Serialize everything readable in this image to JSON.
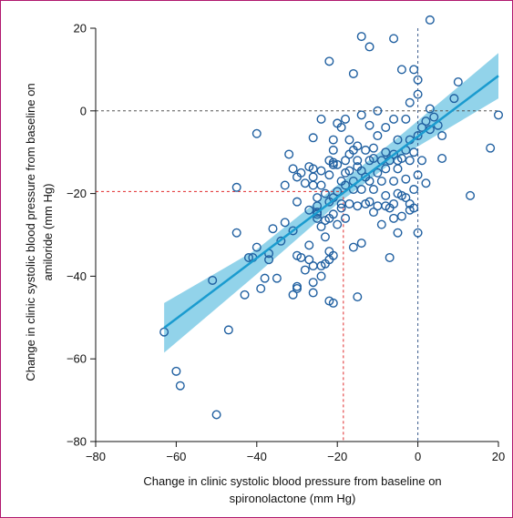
{
  "chart_data": {
    "type": "scatter",
    "xlabel_lines": [
      "Change in clinic systolic blood pressure from baseline on",
      "spironolactone (mm Hg)"
    ],
    "ylabel_lines": [
      "Change in clinic systolic blood pressure from baseline on",
      "amiloride (mm Hg)"
    ],
    "xlim": [
      -80,
      20
    ],
    "ylim": [
      -80,
      20
    ],
    "xticks": [
      -80,
      -60,
      -40,
      -20,
      0,
      20
    ],
    "yticks": [
      -80,
      -60,
      -40,
      -20,
      0,
      20
    ],
    "x_tick_labels": [
      "−80",
      "−60",
      "−40",
      "−20",
      "0",
      "20"
    ],
    "y_tick_labels": [
      "−80",
      "−60",
      "−40",
      "−20",
      "0",
      "20"
    ],
    "grid": false,
    "reference_lines": {
      "zero_horizontal": 0,
      "zero_vertical": 0,
      "highlight_x": -18.5,
      "highlight_y": -19.5
    },
    "regression": {
      "x_range": [
        -63,
        20
      ],
      "y_at_start": -52.5,
      "y_at_end": 8.5,
      "ci_band": [
        {
          "x": -63,
          "lower": -58.5,
          "upper": -46.5
        },
        {
          "x": -40,
          "lower": -39.5,
          "upper": -33.5
        },
        {
          "x": -20,
          "lower": -22.5,
          "upper": -18.0
        },
        {
          "x": -5,
          "lower": -11.5,
          "upper": -6.5
        },
        {
          "x": 20,
          "lower": 3.0,
          "upper": 14.0
        }
      ]
    },
    "points": [
      [
        -63,
        -53.5
      ],
      [
        -60,
        -63
      ],
      [
        -59,
        -66.5
      ],
      [
        -51,
        -41
      ],
      [
        -50,
        -73.5
      ],
      [
        -47,
        -53
      ],
      [
        -45,
        -18.5
      ],
      [
        -45,
        -29.5
      ],
      [
        -43,
        -44.5
      ],
      [
        -42,
        -35.5
      ],
      [
        -41,
        -35.5
      ],
      [
        -40,
        -33
      ],
      [
        -40,
        -5.5
      ],
      [
        -39,
        -43
      ],
      [
        -38,
        -40.5
      ],
      [
        -37,
        -36
      ],
      [
        -37,
        -34.5
      ],
      [
        -36,
        -28.5
      ],
      [
        -35,
        -40.5
      ],
      [
        -34,
        -31.5
      ],
      [
        -33,
        -27
      ],
      [
        -33,
        -18
      ],
      [
        -32,
        -10.5
      ],
      [
        -31,
        -29
      ],
      [
        -31,
        -44.5
      ],
      [
        -31,
        -14
      ],
      [
        -30,
        -42.5
      ],
      [
        -30,
        -43
      ],
      [
        -30,
        -35
      ],
      [
        -30,
        -22
      ],
      [
        -30,
        -16
      ],
      [
        -29,
        -35.5
      ],
      [
        -29,
        -15
      ],
      [
        -28,
        -17.5
      ],
      [
        -28,
        -38.5
      ],
      [
        -27,
        -13.5
      ],
      [
        -27,
        -24
      ],
      [
        -27,
        -32.5
      ],
      [
        -27,
        -36
      ],
      [
        -26,
        -6.5
      ],
      [
        -26,
        -14
      ],
      [
        -26,
        -16
      ],
      [
        -26,
        -18
      ],
      [
        -26,
        -37.5
      ],
      [
        -26,
        -41.5
      ],
      [
        -26,
        -44
      ],
      [
        -25,
        -21
      ],
      [
        -25,
        -24.5
      ],
      [
        -25,
        -25
      ],
      [
        -25,
        -26
      ],
      [
        -25,
        -23
      ],
      [
        -24,
        -18
      ],
      [
        -24,
        -2
      ],
      [
        -24,
        -14.5
      ],
      [
        -24,
        -28
      ],
      [
        -24,
        -37.5
      ],
      [
        -24,
        -40
      ],
      [
        -23,
        -20
      ],
      [
        -23,
        -26.5
      ],
      [
        -23,
        -30.5
      ],
      [
        -23,
        -37
      ],
      [
        -22,
        -12
      ],
      [
        -22,
        -15.5
      ],
      [
        -22,
        -22
      ],
      [
        -22,
        -26
      ],
      [
        -22,
        -34
      ],
      [
        -22,
        -36
      ],
      [
        -22,
        12
      ],
      [
        -22,
        -46
      ],
      [
        -21,
        -7
      ],
      [
        -21,
        -9.5
      ],
      [
        -21,
        -12.5
      ],
      [
        -21,
        -13
      ],
      [
        -21,
        -21
      ],
      [
        -21,
        -25
      ],
      [
        -21,
        -35
      ],
      [
        -21,
        -46.5
      ],
      [
        -20,
        -3
      ],
      [
        -20,
        -13
      ],
      [
        -20,
        -19.5
      ],
      [
        -20,
        -27.5
      ],
      [
        -19,
        -4
      ],
      [
        -19,
        -17
      ],
      [
        -19,
        -22.5
      ],
      [
        -19,
        -23.5
      ],
      [
        -18,
        -2
      ],
      [
        -18,
        -12
      ],
      [
        -18,
        -15
      ],
      [
        -18,
        -18
      ],
      [
        -18,
        -26
      ],
      [
        -17,
        -7
      ],
      [
        -17,
        -10.5
      ],
      [
        -17,
        -14.5
      ],
      [
        -17,
        -22.5
      ],
      [
        -16,
        -9.5
      ],
      [
        -16,
        9
      ],
      [
        -16,
        -17
      ],
      [
        -16,
        -19
      ],
      [
        -16,
        -33
      ],
      [
        -15,
        -8.5
      ],
      [
        -15,
        -12
      ],
      [
        -15,
        -13.5
      ],
      [
        -15,
        -23
      ],
      [
        -15,
        -45
      ],
      [
        -14,
        -1
      ],
      [
        -14,
        18
      ],
      [
        -14,
        -14.5
      ],
      [
        -14,
        -19
      ],
      [
        -14,
        -32
      ],
      [
        -13,
        -9.5
      ],
      [
        -13,
        -16
      ],
      [
        -13,
        -22.5
      ],
      [
        -12,
        15.5
      ],
      [
        -12,
        -3.5
      ],
      [
        -12,
        -12
      ],
      [
        -12,
        -17
      ],
      [
        -12,
        -22
      ],
      [
        -11,
        -9
      ],
      [
        -11,
        -11.5
      ],
      [
        -11,
        -19
      ],
      [
        -11,
        -24.5
      ],
      [
        -10,
        -6
      ],
      [
        -10,
        0
      ],
      [
        -10,
        -15
      ],
      [
        -10,
        -23
      ],
      [
        -9,
        -12
      ],
      [
        -9,
        -17
      ],
      [
        -9,
        -27.5
      ],
      [
        -8,
        -4
      ],
      [
        -8,
        -10
      ],
      [
        -8,
        -14
      ],
      [
        -8,
        -20.5
      ],
      [
        -8,
        -23
      ],
      [
        -7,
        -12
      ],
      [
        -7,
        -23.5
      ],
      [
        -7,
        -35.5
      ],
      [
        -6,
        17.5
      ],
      [
        -6,
        -2
      ],
      [
        -6,
        -10.5
      ],
      [
        -6,
        -17
      ],
      [
        -6,
        -22.5
      ],
      [
        -6,
        -26
      ],
      [
        -5,
        -7
      ],
      [
        -5,
        -12
      ],
      [
        -5,
        -14
      ],
      [
        -5,
        -20
      ],
      [
        -5,
        -29.5
      ],
      [
        -4,
        10
      ],
      [
        -4,
        -11.5
      ],
      [
        -4,
        -20.5
      ],
      [
        -4,
        -25.5
      ],
      [
        -3,
        -2
      ],
      [
        -3,
        -9.5
      ],
      [
        -3,
        -16.5
      ],
      [
        -3,
        -21
      ],
      [
        -2,
        2
      ],
      [
        -2,
        -7
      ],
      [
        -2,
        -12
      ],
      [
        -2,
        -24
      ],
      [
        -2,
        -22.5
      ],
      [
        -1,
        10
      ],
      [
        -1,
        -10
      ],
      [
        -1,
        -19
      ],
      [
        -1,
        -23.5
      ],
      [
        0,
        4
      ],
      [
        0,
        7.5
      ],
      [
        0,
        -6
      ],
      [
        0,
        -15.5
      ],
      [
        0,
        -29.5
      ],
      [
        1,
        -4
      ],
      [
        1,
        -12
      ],
      [
        2,
        -2.5
      ],
      [
        2,
        -17.5
      ],
      [
        3,
        0.5
      ],
      [
        3,
        -4.5
      ],
      [
        3,
        22
      ],
      [
        4,
        -1.5
      ],
      [
        5,
        -3.5
      ],
      [
        6,
        -6
      ],
      [
        6,
        -11.5
      ],
      [
        9,
        3
      ],
      [
        10,
        7
      ],
      [
        13,
        -20.5
      ],
      [
        18,
        -9
      ],
      [
        20,
        -1
      ]
    ]
  }
}
